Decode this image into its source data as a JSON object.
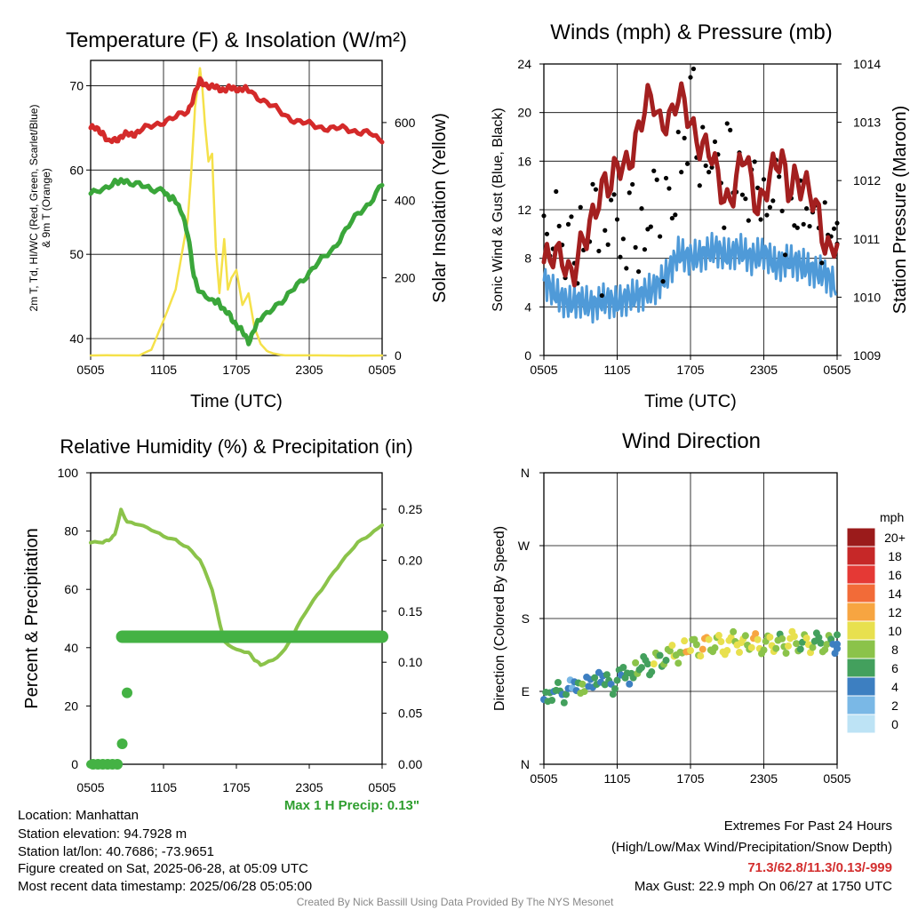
{
  "colors": {
    "temperature": "#d42a2a",
    "dewpoint": "#3aa63a",
    "insolation": "#f5e14a",
    "wind_speed": "#4f9ad8",
    "gust": "#000000",
    "pressure": "#a31f1f",
    "humidity": "#8bc34a",
    "precip": "#44b244",
    "highlight_red": "#d32f2f",
    "highlight_green": "#2e9e2e",
    "credit_gray": "#888888"
  },
  "x_ticks": [
    "0505",
    "1105",
    "1705",
    "2305",
    "0505"
  ],
  "chart_data": [
    {
      "type": "line",
      "title": "Temperature (F) & Insolation (W/m²)",
      "xlabel": "Time (UTC)",
      "ylabel": "2m T, T_d, HI/WC (Red, Green, Scarlet/Blue) & 9m T (Orange)",
      "ylabel_line1": "2m T, Td, HI/WC (Red, Green, Scarlet/Blue)",
      "ylabel_line2": "& 9m T (Orange)",
      "ylabel_right": "Solar Insolation (Yellow)",
      "ylim": [
        38,
        73
      ],
      "ylim_right": [
        0,
        760
      ],
      "y_ticks": [
        40,
        50,
        60,
        70
      ],
      "y_ticks_right": [
        0,
        200,
        400,
        600
      ],
      "x_hours": [
        0,
        24
      ],
      "series": [
        {
          "key": "temp",
          "axis": "left",
          "x": [
            0,
            0.5,
            1,
            1.5,
            2,
            2.5,
            3,
            3.5,
            4,
            5,
            6,
            7,
            8,
            8.5,
            9,
            9.5,
            10,
            10.5,
            11,
            11.5,
            12,
            12.5,
            13,
            14,
            15,
            16,
            17,
            18,
            19,
            20,
            21,
            22,
            23,
            24
          ],
          "values": [
            65,
            64.8,
            64.5,
            63.2,
            63.6,
            64,
            64.2,
            64.3,
            64.6,
            65.2,
            65.8,
            66.2,
            67,
            68.8,
            70.5,
            70.2,
            69.8,
            69.7,
            69.6,
            69.6,
            69.7,
            69.6,
            69.4,
            68.5,
            67.5,
            66.5,
            65.8,
            65.4,
            65.1,
            64.9,
            64.9,
            64.6,
            64.3,
            63.3
          ]
        },
        {
          "key": "dewpoint",
          "axis": "left",
          "x": [
            0,
            1,
            2,
            2.5,
            3,
            4,
            5,
            6,
            6.5,
            7,
            7.5,
            8,
            8.5,
            9,
            10,
            10.5,
            11,
            11.5,
            12,
            12.5,
            13,
            13.5,
            14,
            15,
            16,
            17,
            18,
            19,
            20,
            21,
            22,
            23,
            24
          ],
          "values": [
            57.2,
            57.5,
            58.8,
            58.5,
            58.6,
            58.5,
            57.4,
            57.8,
            56.6,
            56.3,
            55.2,
            52.2,
            47.5,
            45.5,
            44.3,
            44.6,
            43.2,
            42.7,
            41.7,
            40.7,
            39.7,
            41.2,
            42.3,
            43.8,
            44.5,
            46.5,
            47.8,
            49.3,
            50.8,
            52.8,
            54.8,
            56.2,
            58.2
          ]
        },
        {
          "key": "insolation",
          "axis": "right",
          "x": [
            0,
            4,
            5,
            6,
            7,
            7.5,
            8,
            8.3,
            8.6,
            9,
            9.2,
            9.4,
            9.7,
            10,
            10.3,
            10.6,
            11,
            11.3,
            11.6,
            12,
            12.5,
            13,
            13.5,
            14,
            14.5,
            15,
            16,
            24
          ],
          "values": [
            0,
            0,
            15,
            90,
            170,
            260,
            350,
            480,
            640,
            740,
            690,
            600,
            500,
            520,
            280,
            160,
            300,
            170,
            200,
            220,
            130,
            160,
            70,
            30,
            12,
            5,
            0,
            0
          ]
        }
      ]
    },
    {
      "type": "line",
      "title": "Winds (mph) & Pressure (mb)",
      "xlabel": "Time (UTC)",
      "ylabel": "Sonic Wind & Gust (Blue, Black)",
      "ylabel_right": "Station Pressure (Maroon)",
      "ylim": [
        0,
        24
      ],
      "ylim_right": [
        1009,
        1014
      ],
      "y_ticks": [
        0,
        4,
        8,
        12,
        16,
        20,
        24
      ],
      "y_ticks_right": [
        1009,
        1010,
        1011,
        1012,
        1013,
        1014
      ],
      "x_hours": [
        0,
        24
      ],
      "series": [
        {
          "key": "wind",
          "axis": "left",
          "x": [
            0,
            1,
            2,
            3,
            4,
            5,
            6,
            7,
            8,
            9,
            10,
            11,
            12,
            13,
            14,
            15,
            16,
            17,
            18,
            19,
            20,
            21,
            22,
            23,
            24
          ],
          "values": [
            6.2,
            5.0,
            4.3,
            4.5,
            4.1,
            4.6,
            4.3,
            4.8,
            5.0,
            5.5,
            6.5,
            8.4,
            8.0,
            8.3,
            8.8,
            8.2,
            8.7,
            8.0,
            8.5,
            7.4,
            7.8,
            7.5,
            7.0,
            6.7,
            5.6
          ]
        },
        {
          "key": "gust",
          "axis": "left",
          "style": "dots",
          "x": [
            0,
            0.5,
            1,
            1.5,
            2,
            2.5,
            3,
            3.5,
            4,
            4.5,
            5,
            5.5,
            6,
            6.5,
            7,
            7.5,
            8,
            8.5,
            9,
            9.5,
            10,
            10.5,
            11,
            11.5,
            12,
            12.5,
            13,
            13.5,
            14,
            14.5,
            15,
            15.5,
            16,
            16.5,
            17,
            17.5,
            18,
            18.5,
            19,
            19.5,
            20,
            20.5,
            21,
            21.5,
            22,
            22.5,
            23,
            23.5,
            24
          ],
          "values": [
            11.5,
            8.2,
            13.5,
            9.1,
            10.8,
            7.6,
            12.2,
            9.4,
            14.1,
            8.6,
            10.3,
            12.8,
            11.2,
            9.6,
            13.4,
            8.9,
            12.1,
            10.4,
            15.2,
            9.8,
            14.6,
            11.3,
            18.4,
            17.9,
            22.9,
            16.3,
            18.8,
            15.1,
            17.6,
            14.2,
            19.1,
            13.4,
            16.7,
            12.9,
            15.3,
            13.8,
            14.5,
            12.2,
            16.1,
            11.9,
            13.2,
            10.7,
            14.4,
            12.1,
            11.8,
            10.5,
            12.6,
            9.8,
            10.9
          ]
        },
        {
          "key": "pressure",
          "axis": "right",
          "x": [
            0,
            0.5,
            1,
            1.5,
            2,
            2.5,
            3,
            3.5,
            4,
            4.5,
            5,
            5.5,
            6,
            6.5,
            7,
            7.5,
            8,
            8.5,
            9,
            9.5,
            10,
            10.5,
            11,
            11.5,
            12,
            12.5,
            13,
            13.5,
            14,
            14.5,
            15,
            15.5,
            16,
            16.5,
            17,
            17.5,
            18,
            18.5,
            19,
            19.5,
            20,
            20.5,
            21,
            21.5,
            22,
            22.5,
            23,
            23.5,
            24
          ],
          "values": [
            1010.6,
            1010.5,
            1010.6,
            1010.8,
            1010.6,
            1010.5,
            1010.7,
            1010.9,
            1011.4,
            1011.9,
            1012.1,
            1011.8,
            1012.1,
            1012.2,
            1012.5,
            1012.8,
            1013.0,
            1013.2,
            1013.3,
            1013.1,
            1013.2,
            1013.1,
            1013.3,
            1013.2,
            1013.1,
            1012.9,
            1012.6,
            1012.4,
            1012.1,
            1011.9,
            1011.8,
            1011.9,
            1012.1,
            1012.3,
            1011.9,
            1011.7,
            1011.9,
            1012.0,
            1012.1,
            1012.3,
            1012.0,
            1012.2,
            1011.9,
            1011.7,
            1011.6,
            1011.5,
            1011.1,
            1010.8,
            1010.9
          ]
        }
      ]
    },
    {
      "type": "line",
      "title": "Relative Humidity (%) & Precipitation (in)",
      "xlabel": "",
      "ylabel": "Percent & Precipitation",
      "ylim": [
        0,
        100
      ],
      "ylim_right": [
        0,
        0.2857
      ],
      "y_ticks": [
        0,
        20,
        40,
        60,
        80,
        100
      ],
      "y_ticks_right": [
        "0.00",
        "0.05",
        "0.10",
        "0.15",
        "0.20",
        "0.25"
      ],
      "x_hours": [
        0,
        24
      ],
      "series": [
        {
          "key": "rh",
          "axis": "left",
          "x": [
            0,
            1,
            1.5,
            2,
            2.5,
            3,
            4,
            5,
            6,
            7,
            8,
            9,
            10,
            10.5,
            11,
            12,
            13,
            13.5,
            14,
            15,
            16,
            17,
            18,
            19,
            20,
            21,
            22,
            23,
            24
          ],
          "values": [
            76,
            76,
            77,
            79,
            87,
            83,
            82.5,
            80.5,
            78,
            77,
            74.5,
            70,
            60,
            51,
            42,
            39,
            38.5,
            36,
            34,
            35.5,
            39.5,
            47,
            54,
            60,
            66,
            71,
            76,
            79,
            82
          ]
        },
        {
          "key": "precip",
          "axis": "right",
          "style": "bars",
          "x": [
            0.2,
            0.6,
            1.0,
            1.4,
            1.8,
            2.2,
            2.6,
            3
          ],
          "values": [
            0.0,
            0.0,
            0.0,
            0.0,
            0.0,
            0.0,
            0.02,
            0.07
          ]
        },
        {
          "key": "precip_total",
          "axis": "right",
          "style": "band",
          "x": [
            2.6,
            24
          ],
          "values": [
            0.125,
            0.125
          ]
        }
      ],
      "annotation": "Max 1 H Precip: 0.13\""
    },
    {
      "type": "scatter",
      "title": "Wind Direction",
      "ylabel": "Direction (Colored By Speed)",
      "y_ticks": [
        "N",
        "E",
        "S",
        "W",
        "N"
      ],
      "x_hours": [
        0,
        24
      ],
      "legend_title": "mph",
      "legend_labels": [
        "20+",
        "18",
        "16",
        "14",
        "12",
        "10",
        "8",
        "6",
        "4",
        "2",
        "0"
      ],
      "legend_colors": [
        "#9b1b1b",
        "#c62828",
        "#e53935",
        "#f26b38",
        "#f7a541",
        "#e8e04e",
        "#8bc34a",
        "#43a05d",
        "#3d7fc1",
        "#7ab8e6",
        "#bde3f5"
      ],
      "x": [
        0,
        0.5,
        1,
        1.5,
        2,
        2.5,
        3,
        3.5,
        4,
        4.5,
        5,
        5.5,
        6,
        6.5,
        7,
        7.5,
        8,
        8.5,
        9,
        9.5,
        10,
        10.5,
        11,
        11.5,
        12,
        12.5,
        13,
        13.5,
        14,
        14.5,
        15,
        15.5,
        16,
        16.5,
        17,
        17.5,
        18,
        18.5,
        19,
        19.5,
        20,
        20.5,
        21,
        21.5,
        22,
        22.5,
        23,
        23.5,
        24
      ],
      "directions": [
        80,
        88,
        92,
        85,
        95,
        100,
        90,
        105,
        98,
        110,
        102,
        95,
        108,
        115,
        104,
        120,
        125,
        118,
        130,
        128,
        135,
        140,
        132,
        145,
        148,
        140,
        150,
        146,
        152,
        143,
        149,
        155,
        147,
        150,
        153,
        145,
        150,
        148,
        152,
        146,
        155,
        149,
        151,
        147,
        153,
        148,
        150,
        146,
        151
      ],
      "speeds": [
        4,
        5,
        6,
        4,
        3,
        5,
        6,
        4,
        5,
        3,
        6,
        5,
        4,
        6,
        5,
        7,
        6,
        5,
        8,
        7,
        6,
        9,
        8,
        10,
        9,
        8,
        10,
        9,
        8,
        9,
        10,
        8,
        9,
        8,
        10,
        9,
        8,
        9,
        7,
        8,
        9,
        8,
        7,
        8,
        6,
        7,
        6,
        5,
        4
      ]
    }
  ],
  "footer": {
    "location": "Location: Manhattan",
    "elevation": "Station elevation: 94.7928 m",
    "latlon": "Station lat/lon: 40.7686; -73.9651",
    "created": "Figure created on Sat, 2025-06-28, at 05:09 UTC",
    "recent": "Most recent data timestamp: 2025/06/28 05:05:00",
    "extremes_title": "Extremes For Past 24 Hours",
    "extremes_sub": "(High/Low/Max Wind/Precipitation/Snow Depth)",
    "extremes_values": "71.3/62.8/11.3/0.13/-999",
    "max_gust": "Max Gust: 22.9 mph On 06/27 at 1750 UTC",
    "credit": "Created By Nick Bassill Using Data Provided By The NYS Mesonet"
  }
}
